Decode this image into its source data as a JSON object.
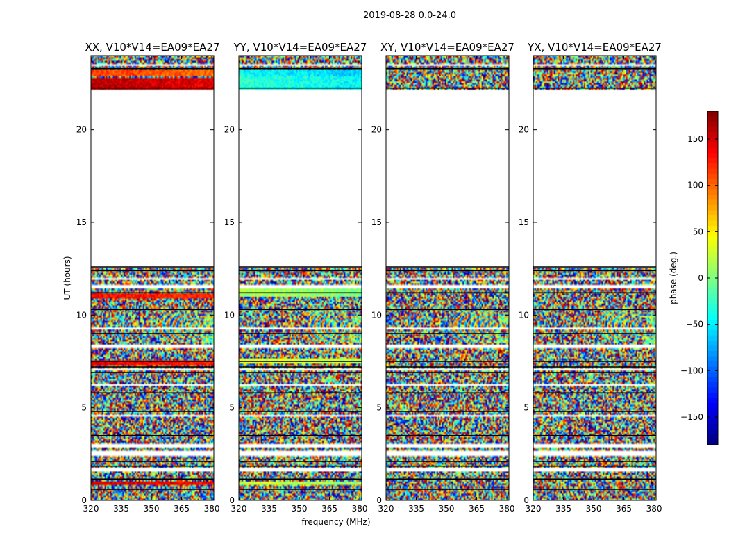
{
  "figure_title": "2019-08-28 0.0-24.0",
  "chart_data": {
    "type": "heatmap",
    "suptitle": "2019-08-28 0.0-24.0",
    "xlabel": "frequency (MHz)",
    "ylabel": "UT (hours)",
    "xlim": [
      320,
      381
    ],
    "ylim": [
      0,
      24
    ],
    "xticks": [
      320,
      335,
      350,
      365,
      380
    ],
    "yticks": [
      0,
      5,
      10,
      15,
      20
    ],
    "xtick_labels": [
      "320",
      "335",
      "350",
      "365",
      "380"
    ],
    "ytick_labels": [
      "0",
      "5",
      "10",
      "15",
      "20"
    ],
    "panels": [
      {
        "title": "XX, V10*V14=EA09*EA27",
        "pol": "XX"
      },
      {
        "title": "YY, V10*V14=EA09*EA27",
        "pol": "YY"
      },
      {
        "title": "XY, V10*V14=EA09*EA27",
        "pol": "XY"
      },
      {
        "title": "YX, V10*V14=EA09*EA27",
        "pol": "YX"
      }
    ],
    "observed_time_ranges_hours": [
      [
        0,
        12.6
      ],
      [
        22.2,
        24
      ]
    ],
    "no_data_time_range_hours": [
      12.6,
      22.2
    ],
    "colorbar": {
      "label": "phase (deg.)",
      "range": [
        -180,
        180
      ],
      "ticks": [
        150,
        100,
        50,
        0,
        -50,
        -100,
        -150
      ],
      "tick_labels": [
        "150",
        "100",
        "50",
        "0",
        "−50",
        "−100",
        "−150"
      ],
      "colormap": "jet"
    }
  }
}
